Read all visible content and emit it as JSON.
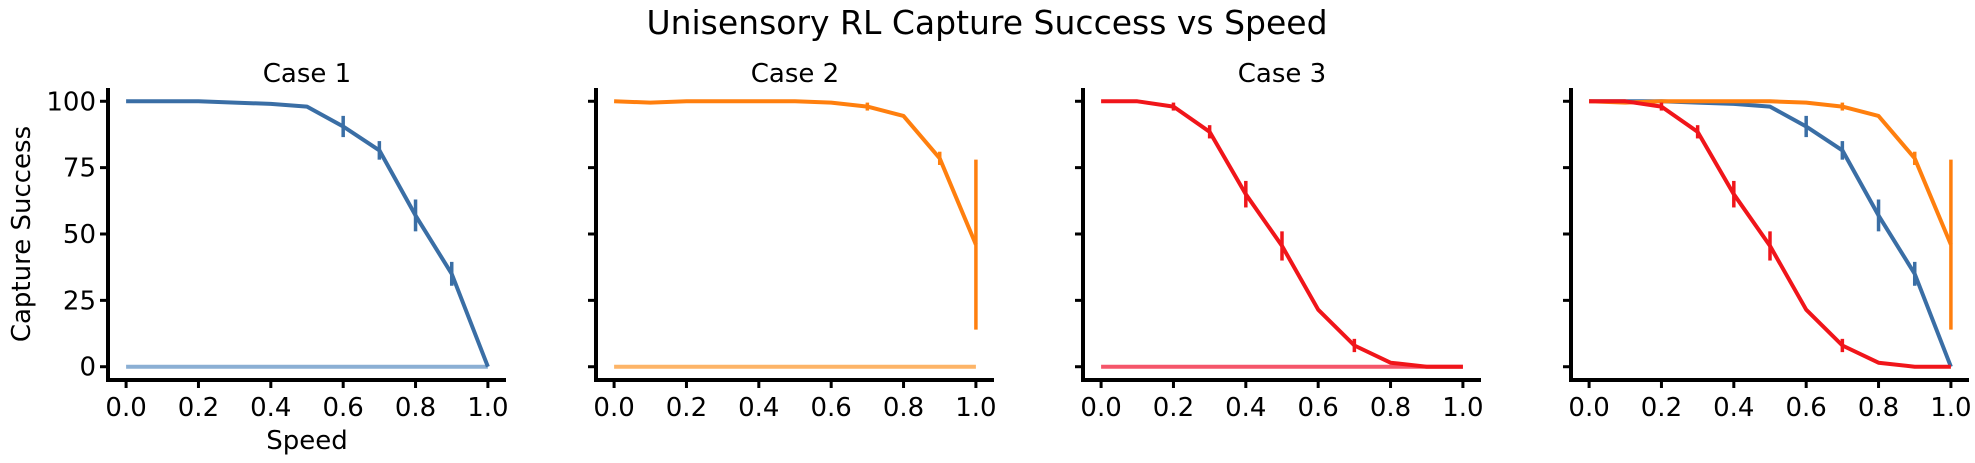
{
  "figure": {
    "title": "Unisensory RL Capture Success vs Speed"
  },
  "chart_data": [
    {
      "type": "line",
      "title": "Case 1",
      "xlabel": "Speed",
      "ylabel": "Capture Success",
      "xlim": [
        -0.05,
        1.05
      ],
      "ylim": [
        -5,
        105
      ],
      "xticks": [
        "0.0",
        "0.2",
        "0.4",
        "0.6",
        "0.8",
        "1.0"
      ],
      "yticks": [
        "0",
        "25",
        "50",
        "75",
        "100"
      ],
      "show_yticklabels": true,
      "series": [
        {
          "color": "#8BAFD4",
          "width": 4,
          "x": [
            0,
            1
          ],
          "y": [
            0,
            0
          ],
          "err": []
        },
        {
          "color": "#3A6EA5",
          "width": 4,
          "x": [
            0,
            0.1,
            0.2,
            0.3,
            0.4,
            0.5,
            0.6,
            0.7,
            0.8,
            0.9,
            1.0
          ],
          "y": [
            100,
            100,
            100,
            99.5,
            99,
            98,
            90.5,
            81.5,
            57,
            35,
            0
          ],
          "err": [
            0,
            0,
            0,
            0,
            0,
            0,
            4,
            3.5,
            6,
            4.5,
            0
          ]
        }
      ]
    },
    {
      "type": "line",
      "title": "Case 2",
      "xlabel": "",
      "ylabel": "",
      "xlim": [
        -0.05,
        1.05
      ],
      "ylim": [
        -5,
        105
      ],
      "xticks": [
        "0.0",
        "0.2",
        "0.4",
        "0.6",
        "0.8",
        "1.0"
      ],
      "yticks": [
        "0",
        "25",
        "50",
        "75",
        "100"
      ],
      "show_yticklabels": false,
      "series": [
        {
          "color": "#FDB467",
          "width": 4,
          "x": [
            0,
            1
          ],
          "y": [
            0,
            0
          ],
          "err": []
        },
        {
          "color": "#FF7F0E",
          "width": 4,
          "x": [
            0,
            0.1,
            0.2,
            0.3,
            0.4,
            0.5,
            0.6,
            0.7,
            0.8,
            0.9,
            1.0
          ],
          "y": [
            100,
            99.5,
            100,
            100,
            100,
            100,
            99.5,
            98,
            94.5,
            78.5,
            46
          ],
          "err": [
            0,
            0,
            0,
            0,
            0,
            0,
            0,
            1.5,
            0,
            2.5,
            32
          ]
        }
      ]
    },
    {
      "type": "line",
      "title": "Case 3",
      "xlabel": "",
      "ylabel": "",
      "xlim": [
        -0.05,
        1.05
      ],
      "ylim": [
        -5,
        105
      ],
      "xticks": [
        "0.0",
        "0.2",
        "0.4",
        "0.6",
        "0.8",
        "1.0"
      ],
      "yticks": [
        "0",
        "25",
        "50",
        "75",
        "100"
      ],
      "show_yticklabels": false,
      "series": [
        {
          "color": "#F5566A",
          "width": 4,
          "x": [
            0,
            1
          ],
          "y": [
            0,
            0
          ],
          "err": []
        },
        {
          "color": "#F0151A",
          "width": 4,
          "x": [
            0,
            0.1,
            0.2,
            0.3,
            0.4,
            0.5,
            0.6,
            0.7,
            0.8,
            0.9,
            1.0
          ],
          "y": [
            100,
            100,
            98,
            88.5,
            65,
            45.5,
            21.5,
            8,
            1.5,
            0,
            0
          ],
          "err": [
            0,
            0,
            1.5,
            2.5,
            5,
            5.5,
            0,
            2.5,
            0,
            0,
            0
          ]
        }
      ]
    },
    {
      "type": "line",
      "title": "",
      "xlabel": "",
      "ylabel": "",
      "xlim": [
        -0.05,
        1.05
      ],
      "ylim": [
        -5,
        105
      ],
      "xticks": [
        "0.0",
        "0.2",
        "0.4",
        "0.6",
        "0.8",
        "1.0"
      ],
      "yticks": [
        "0",
        "25",
        "50",
        "75",
        "100"
      ],
      "show_yticklabels": false,
      "series": [
        {
          "color": "#3A6EA5",
          "width": 4,
          "x": [
            0,
            0.1,
            0.2,
            0.3,
            0.4,
            0.5,
            0.6,
            0.7,
            0.8,
            0.9,
            1.0
          ],
          "y": [
            100,
            100,
            100,
            99.5,
            99,
            98,
            90.5,
            81.5,
            57,
            35,
            0
          ],
          "err": [
            0,
            0,
            0,
            0,
            0,
            0,
            4,
            3.5,
            6,
            4.5,
            0
          ]
        },
        {
          "color": "#FF7F0E",
          "width": 4,
          "x": [
            0,
            0.1,
            0.2,
            0.3,
            0.4,
            0.5,
            0.6,
            0.7,
            0.8,
            0.9,
            1.0
          ],
          "y": [
            100,
            99.5,
            100,
            100,
            100,
            100,
            99.5,
            98,
            94.5,
            78.5,
            46
          ],
          "err": [
            0,
            0,
            0,
            0,
            0,
            0,
            0,
            1.5,
            0,
            2.5,
            32
          ]
        },
        {
          "color": "#F0151A",
          "width": 4,
          "x": [
            0,
            0.1,
            0.2,
            0.3,
            0.4,
            0.5,
            0.6,
            0.7,
            0.8,
            0.9,
            1.0
          ],
          "y": [
            100,
            100,
            98,
            88.5,
            65,
            45.5,
            21.5,
            8,
            1.5,
            0,
            0
          ],
          "err": [
            0,
            0,
            1.5,
            2.5,
            5,
            5.5,
            0,
            2.5,
            0,
            0,
            0
          ]
        }
      ]
    }
  ]
}
